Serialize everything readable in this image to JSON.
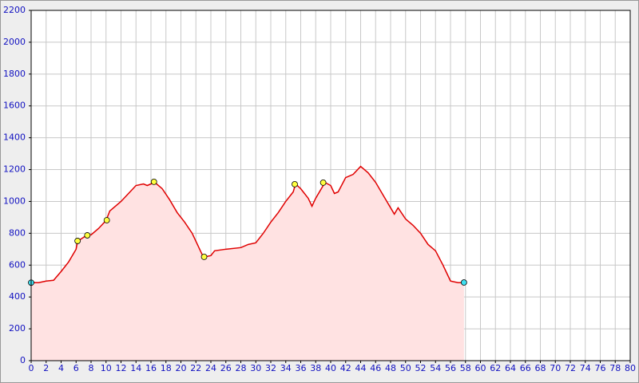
{
  "chart_data": {
    "type": "area",
    "x": [
      0,
      1,
      2,
      3,
      4,
      5,
      6,
      6.2,
      7.5,
      8,
      9,
      10,
      10.5,
      12,
      13,
      14,
      15,
      15.5,
      16.5,
      17.5,
      18.5,
      19.5,
      20.5,
      21.5,
      22,
      23,
      24,
      24.5,
      26,
      28,
      29,
      30,
      31,
      32,
      33,
      34,
      35,
      35.3,
      36,
      37,
      37.5,
      38,
      39,
      39.2,
      40,
      40.5,
      41,
      42,
      43,
      44,
      45,
      46,
      47,
      48,
      48.5,
      49,
      50,
      51,
      52,
      53,
      54,
      55,
      55.5,
      56,
      57,
      57.8
    ],
    "series": [
      {
        "color": "#e00000",
        "fill": "#ffe2e2",
        "values": [
          490,
          490,
          500,
          505,
          560,
          620,
          700,
          750,
          790,
          790,
          830,
          880,
          940,
          1000,
          1050,
          1100,
          1110,
          1100,
          1120,
          1080,
          1010,
          930,
          870,
          800,
          750,
          650,
          660,
          690,
          700,
          710,
          730,
          740,
          800,
          870,
          930,
          1000,
          1060,
          1110,
          1080,
          1020,
          970,
          1020,
          1100,
          1120,
          1100,
          1050,
          1060,
          1150,
          1170,
          1220,
          1180,
          1120,
          1040,
          960,
          920,
          960,
          890,
          850,
          800,
          730,
          690,
          600,
          550,
          500,
          490,
          490
        ]
      }
    ],
    "waypoints": {
      "x": [
        6.2,
        7.5,
        10.1,
        16.4,
        23.1,
        35.2,
        39.0
      ],
      "values": [
        752,
        787,
        882,
        1123,
        652,
        1108,
        1118
      ],
      "color": "#ffff40"
    },
    "endpoints": {
      "x": [
        0,
        57.8
      ],
      "values": [
        490,
        491
      ],
      "color": "#40e0f0"
    },
    "xlim": [
      0,
      80
    ],
    "xticks": [
      0,
      2,
      4,
      6,
      8,
      10,
      12,
      14,
      16,
      18,
      20,
      22,
      24,
      26,
      28,
      30,
      32,
      34,
      36,
      38,
      40,
      42,
      44,
      46,
      48,
      50,
      52,
      54,
      56,
      58,
      60,
      62,
      64,
      66,
      68,
      70,
      72,
      74,
      76,
      78,
      80
    ],
    "ylim": [
      0,
      2200
    ],
    "yticks": [
      0,
      200,
      400,
      600,
      800,
      1000,
      1200,
      1400,
      1600,
      1800,
      2000,
      2200
    ],
    "grid": true
  }
}
